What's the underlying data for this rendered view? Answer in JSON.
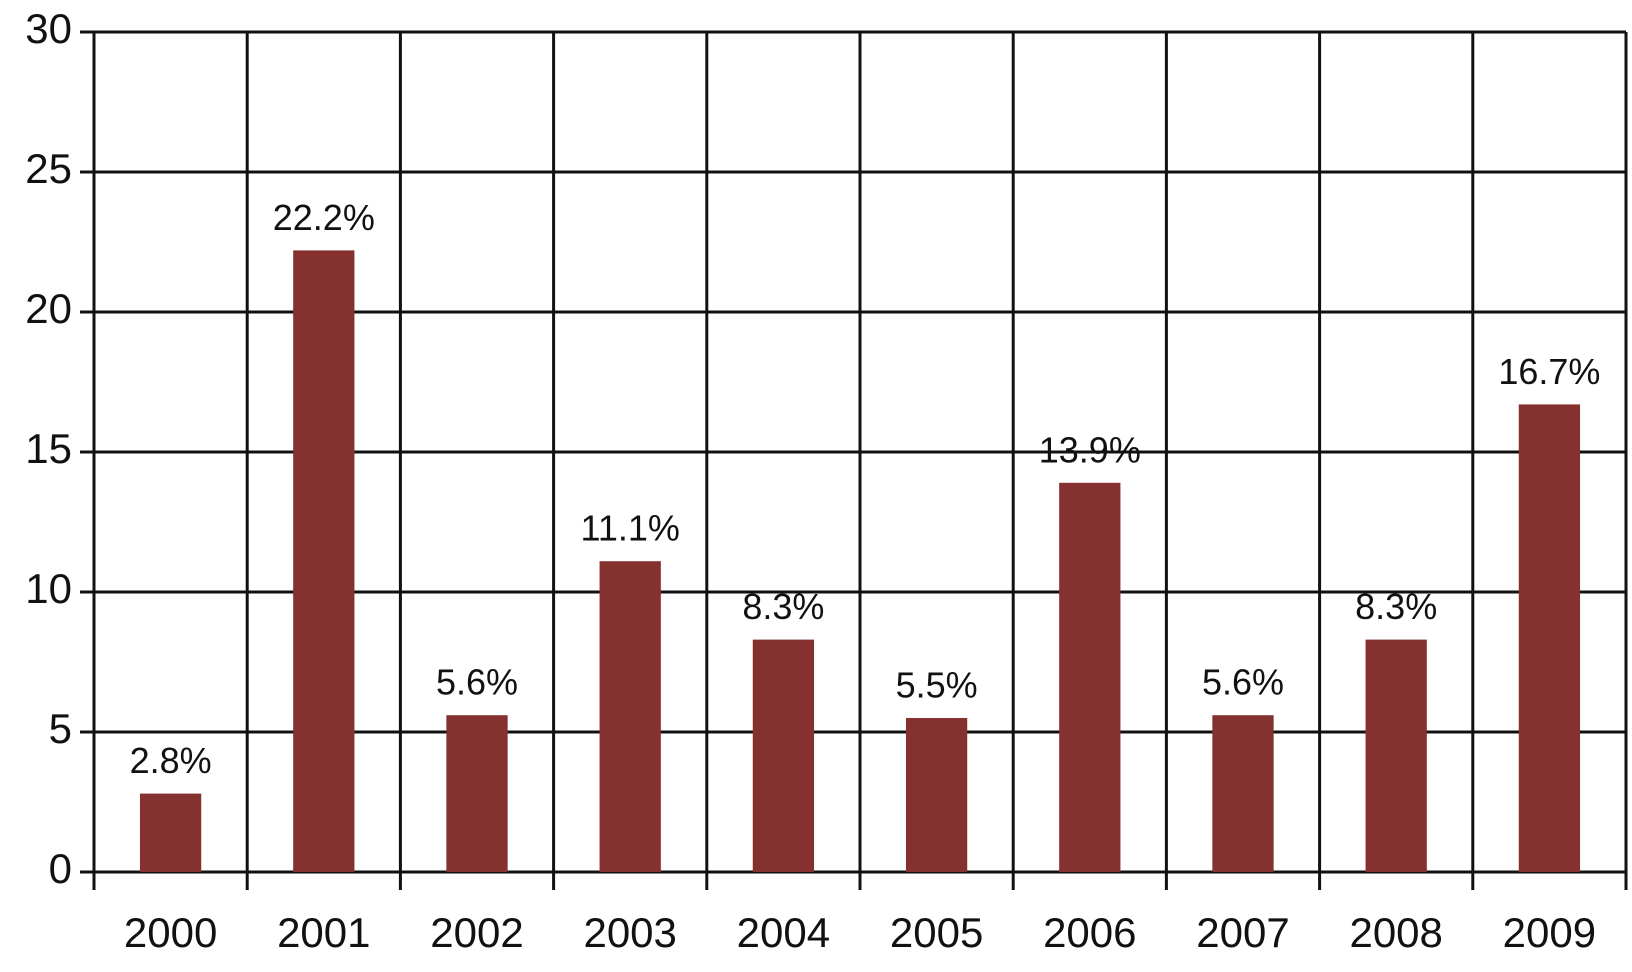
{
  "chart_data": {
    "type": "bar",
    "categories": [
      "2000",
      "2001",
      "2002",
      "2003",
      "2004",
      "2005",
      "2006",
      "2007",
      "2008",
      "2009"
    ],
    "values": [
      2.8,
      22.2,
      5.6,
      11.1,
      8.3,
      5.5,
      13.9,
      5.6,
      8.3,
      16.7
    ],
    "value_labels": [
      "2.8%",
      "22.2%",
      "5.6%",
      "11.1%",
      "8.3%",
      "5.5%",
      "13.9%",
      "5.6%",
      "8.3%",
      "16.7%"
    ],
    "color": "#85312f",
    "ylim": [
      0,
      30
    ],
    "yticks": [
      0,
      5,
      10,
      15,
      20,
      25,
      30
    ],
    "grid": true
  }
}
